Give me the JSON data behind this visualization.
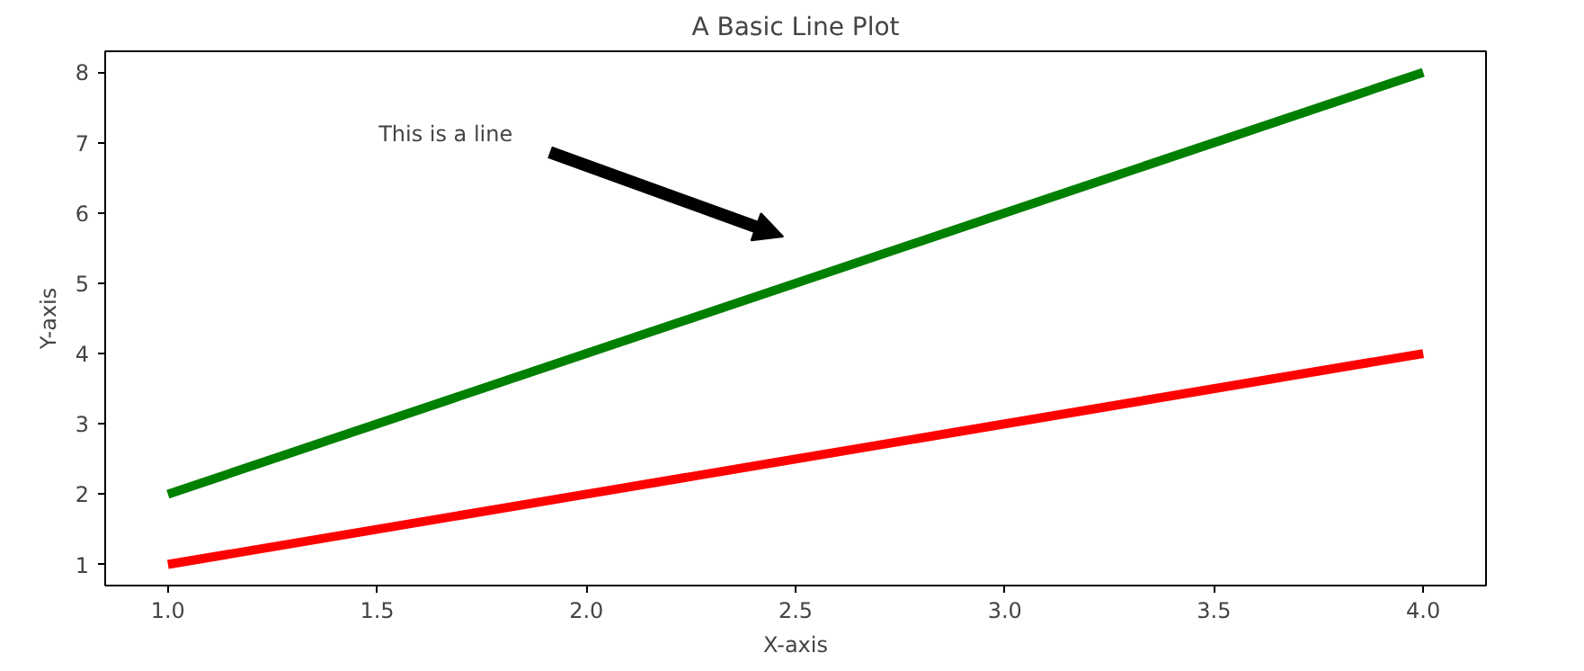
{
  "chart_data": {
    "type": "line",
    "title": "A Basic Line Plot",
    "xlabel": "X-axis",
    "ylabel": "Y-axis",
    "x": [
      1,
      2,
      3,
      4
    ],
    "series": [
      {
        "color": "#008000",
        "values": [
          2,
          4,
          6,
          8
        ]
      },
      {
        "color": "#ff0000",
        "values": [
          1,
          2,
          3,
          4
        ]
      }
    ],
    "xlim": [
      0.85,
      4.15
    ],
    "ylim": [
      0.7,
      8.3
    ],
    "xticks": [
      {
        "value": 1,
        "label": "1.0"
      },
      {
        "value": 1.5,
        "label": "1.5"
      },
      {
        "value": 2,
        "label": "2.0"
      },
      {
        "value": 2.5,
        "label": "2.5"
      },
      {
        "value": 3,
        "label": "3.0"
      },
      {
        "value": 3.5,
        "label": "3.5"
      },
      {
        "value": 4,
        "label": "4.0"
      }
    ],
    "yticks": [
      1,
      2,
      3,
      4,
      5,
      6,
      7,
      8
    ],
    "annotations": [
      "This is a line"
    ],
    "grid": false,
    "marker": "none",
    "line_style": "solid"
  }
}
